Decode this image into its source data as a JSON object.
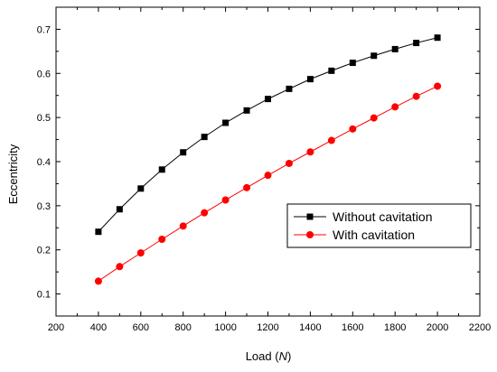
{
  "chart_data": {
    "type": "line",
    "title": "",
    "xlabel": "Load (N)",
    "xlabel_prefix": "Load (",
    "xlabel_unit": "N",
    "xlabel_suffix": ")",
    "ylabel": "Eccentricity",
    "xlim": [
      200,
      2200
    ],
    "ylim": [
      0.05,
      0.75
    ],
    "xticks": [
      200,
      400,
      600,
      800,
      1000,
      1200,
      1400,
      1600,
      1800,
      2000,
      2200
    ],
    "yticks": [
      0.1,
      0.2,
      0.3,
      0.4,
      0.5,
      0.6,
      0.7
    ],
    "grid": false,
    "legend_position": "lower-right",
    "x": [
      400,
      500,
      600,
      700,
      800,
      900,
      1000,
      1100,
      1200,
      1300,
      1400,
      1500,
      1600,
      1700,
      1800,
      1900,
      2000
    ],
    "series": [
      {
        "name": "Without cavitation",
        "color": "#000000",
        "marker": "square",
        "values": [
          0.241,
          0.292,
          0.339,
          0.382,
          0.421,
          0.456,
          0.488,
          0.516,
          0.542,
          0.565,
          0.587,
          0.606,
          0.624,
          0.64,
          0.655,
          0.669,
          0.681
        ]
      },
      {
        "name": "With cavitation",
        "color": "#ff0000",
        "marker": "circle",
        "values": [
          0.129,
          0.162,
          0.193,
          0.224,
          0.254,
          0.284,
          0.313,
          0.341,
          0.369,
          0.396,
          0.422,
          0.448,
          0.474,
          0.499,
          0.524,
          0.548,
          0.571
        ]
      }
    ]
  }
}
